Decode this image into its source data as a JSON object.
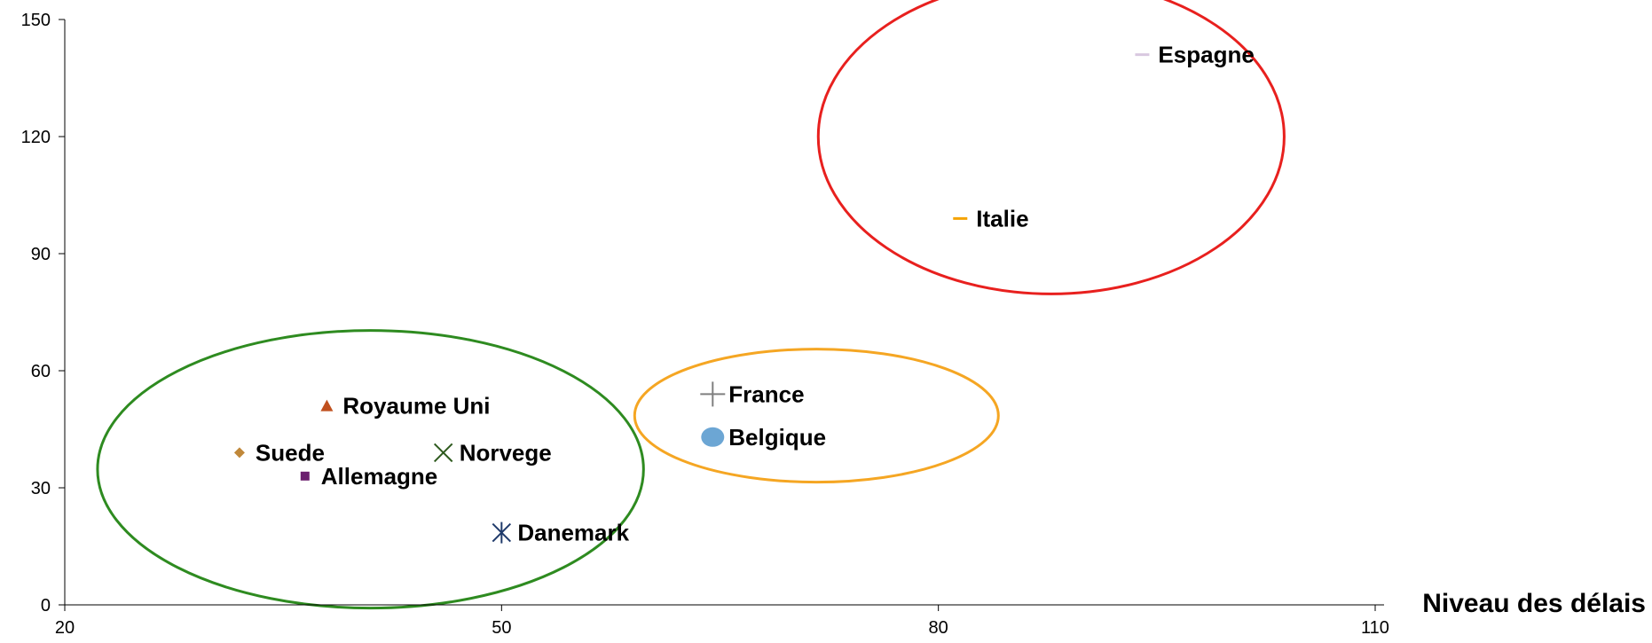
{
  "chart_data": {
    "type": "scatter",
    "title": "",
    "xlabel": "Niveau des délais",
    "ylabel": "",
    "xlim": [
      20,
      110
    ],
    "ylim": [
      0,
      150
    ],
    "x_ticks": [
      "20",
      "50",
      "80",
      "110"
    ],
    "y_ticks": [
      "0",
      "30",
      "60",
      "90",
      "120",
      "150"
    ],
    "grid": false,
    "legend": "none",
    "points": [
      {
        "name": "Espagne",
        "x": 94,
        "y": 141,
        "marker": "dash",
        "color": "#D9C8E0"
      },
      {
        "name": "Italie",
        "x": 81.5,
        "y": 99,
        "marker": "dash",
        "color": "#F5A300"
      },
      {
        "name": "France",
        "x": 64.5,
        "y": 54,
        "marker": "plus",
        "color": "#7F7F7F"
      },
      {
        "name": "Belgique",
        "x": 64.5,
        "y": 43,
        "marker": "circle",
        "color": "#6CA6D4"
      },
      {
        "name": "Royaume Uni",
        "x": 38,
        "y": 51,
        "marker": "triangle",
        "color": "#C0501E"
      },
      {
        "name": "Suede",
        "x": 32,
        "y": 39,
        "marker": "diamond",
        "color": "#C0883A"
      },
      {
        "name": "Norvege",
        "x": 46,
        "y": 39,
        "marker": "x",
        "color": "#2E5A1E"
      },
      {
        "name": "Allemagne",
        "x": 36.5,
        "y": 33,
        "marker": "square",
        "color": "#6B1F6E"
      },
      {
        "name": "Danemark",
        "x": 50,
        "y": 18.5,
        "marker": "star",
        "color": "#1F3A6B"
      }
    ],
    "groups": [
      {
        "color": "#2E8B20",
        "members": [
          "Royaume Uni",
          "Suede",
          "Norvege",
          "Allemagne",
          "Danemark"
        ]
      },
      {
        "color": "#F5A623",
        "members": [
          "France",
          "Belgique"
        ]
      },
      {
        "color": "#E8201E",
        "members": [
          "Espagne",
          "Italie"
        ]
      }
    ]
  }
}
